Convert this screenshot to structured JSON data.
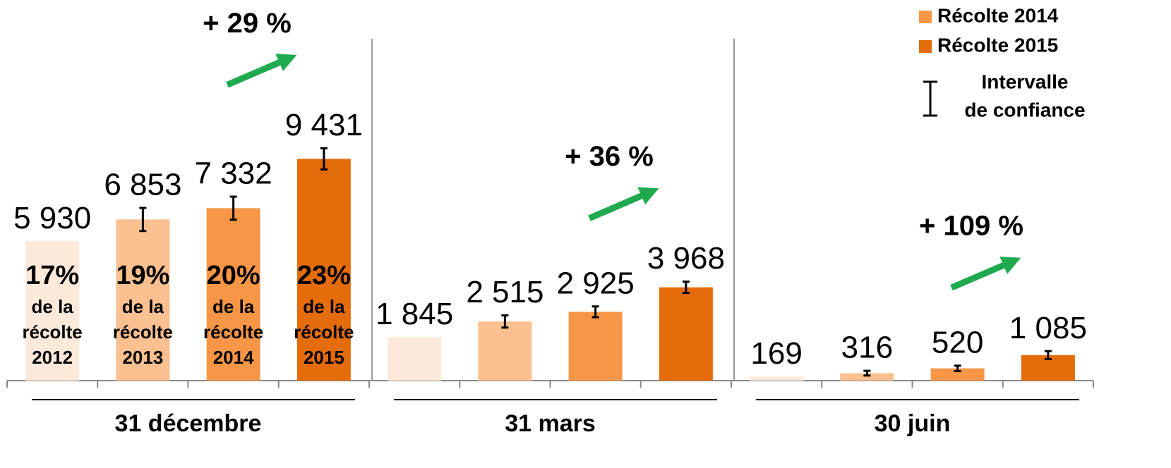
{
  "chart_data": {
    "type": "bar",
    "categories": [
      "31 décembre",
      "31 mars",
      "30 juin"
    ],
    "series": [
      {
        "color": "#fde9d9",
        "values": [
          5930,
          1845,
          169
        ],
        "value_labels": [
          "5 930",
          "1 845",
          "169"
        ],
        "errors": [
          null,
          null,
          null
        ]
      },
      {
        "color": "#fac090",
        "values": [
          6853,
          2515,
          316
        ],
        "value_labels": [
          "6 853",
          "2 515",
          "316"
        ],
        "errors": [
          490,
          260,
          100
        ]
      },
      {
        "name": "Récolte 2014",
        "color": "#f79646",
        "values": [
          7332,
          2925,
          520
        ],
        "value_labels": [
          "7 332",
          "2 925",
          "520"
        ],
        "errors": [
          490,
          230,
          115
        ]
      },
      {
        "name": "Récolte 2015",
        "color": "#e46c0a",
        "values": [
          9431,
          3968,
          1085
        ],
        "value_labels": [
          "9 431",
          "3 968",
          "1 085"
        ],
        "errors": [
          450,
          240,
          170
        ]
      }
    ],
    "shares": [
      17,
      19,
      20,
      23
    ],
    "share_labels": [
      "17%",
      "19%",
      "20%",
      "23%"
    ],
    "share_notes": [
      [
        "de la",
        "récolte",
        "2012"
      ],
      [
        "de la",
        "récolte",
        "2013"
      ],
      [
        "de la",
        "récolte",
        "2014"
      ],
      [
        "de la",
        "récolte",
        "2015"
      ]
    ],
    "growth": [
      {
        "value": 29,
        "label": "+ 29 %"
      },
      {
        "value": 36,
        "label": "+ 36 %"
      },
      {
        "value": 109,
        "label": "+ 109 %"
      }
    ],
    "error_legend": [
      "Intervalle",
      "de confiance"
    ],
    "ylim": [
      0,
      11000
    ],
    "legend": "top-right"
  }
}
